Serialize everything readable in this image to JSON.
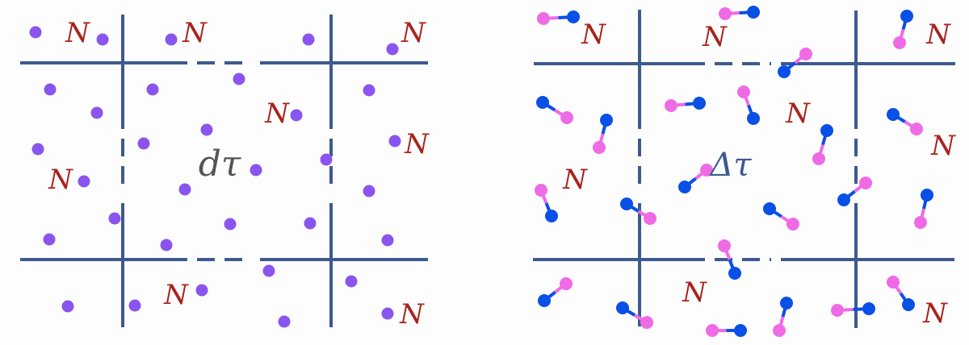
{
  "left_panel": {
    "center_label": "dτ",
    "cell_label": "N",
    "particle": "atom"
  },
  "right_panel": {
    "center_label": "Δτ",
    "cell_label": "N",
    "particle": "diatomic-molecule"
  },
  "colors": {
    "grid": "#3d5a8e",
    "atom": "#8a55ee",
    "cell_label": "#a8231c",
    "left_center_label": "#555555",
    "right_center_label": "#3d5a8e",
    "molecule_pink": "#ef6be6",
    "molecule_blue": "#0a4fe6"
  }
}
